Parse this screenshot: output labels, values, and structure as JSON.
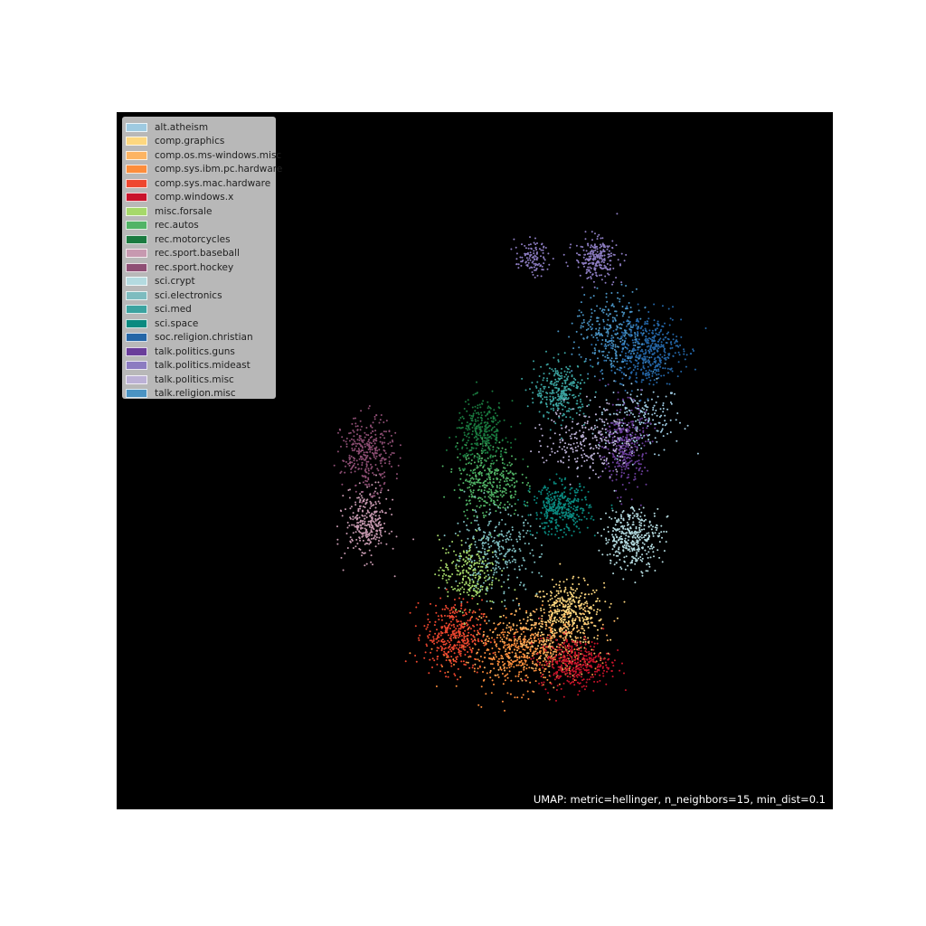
{
  "chart_data": {
    "type": "scatter",
    "title": "",
    "annotation": "UMAP: metric=hellinger, n_neighbors=15, min_dist=0.1",
    "background": "#000000",
    "grid": false,
    "legend_position": "top-left",
    "axes_ticks_visible": false,
    "xlim": [
      0,
      100
    ],
    "ylim": [
      0,
      100
    ],
    "series": [
      {
        "name": "alt.atheism",
        "color": "#9ecae1",
        "clusters": [
          {
            "x": 73,
            "y": 56,
            "sx": 3,
            "sy": 2.5,
            "n": 200
          }
        ]
      },
      {
        "name": "comp.graphics",
        "color": "#fdd77f",
        "clusters": [
          {
            "x": 63,
            "y": 28,
            "sx": 2.5,
            "sy": 2.2,
            "n": 420
          }
        ]
      },
      {
        "name": "comp.os.ms-windows.misc",
        "color": "#fdb462",
        "clusters": [
          {
            "x": 59,
            "y": 24,
            "sx": 4,
            "sy": 2.5,
            "n": 360
          }
        ]
      },
      {
        "name": "comp.sys.ibm.pc.hardware",
        "color": "#fd8d3c",
        "clusters": [
          {
            "x": 56,
            "y": 22,
            "sx": 4,
            "sy": 2.5,
            "n": 400
          }
        ]
      },
      {
        "name": "comp.sys.mac.hardware",
        "color": "#ef472f",
        "clusters": [
          {
            "x": 47,
            "y": 25,
            "sx": 2,
            "sy": 2.5,
            "n": 380
          }
        ]
      },
      {
        "name": "comp.windows.x",
        "color": "#c9132b",
        "clusters": [
          {
            "x": 64,
            "y": 21,
            "sx": 2.5,
            "sy": 1.8,
            "n": 380
          }
        ]
      },
      {
        "name": "misc.forsale",
        "color": "#a6d96a",
        "clusters": [
          {
            "x": 49,
            "y": 34,
            "sx": 2,
            "sy": 2.5,
            "n": 250
          }
        ]
      },
      {
        "name": "rec.autos",
        "color": "#51b466",
        "clusters": [
          {
            "x": 52,
            "y": 47,
            "sx": 2.2,
            "sy": 2.5,
            "n": 360
          }
        ]
      },
      {
        "name": "rec.motorcycles",
        "color": "#1a7a3f",
        "clusters": [
          {
            "x": 51,
            "y": 54,
            "sx": 1.8,
            "sy": 2.2,
            "n": 320
          }
        ]
      },
      {
        "name": "rec.sport.baseball",
        "color": "#c799b0",
        "clusters": [
          {
            "x": 35,
            "y": 41,
            "sx": 1.5,
            "sy": 2.5,
            "n": 300
          }
        ]
      },
      {
        "name": "rec.sport.hockey",
        "color": "#8e4e74",
        "clusters": [
          {
            "x": 35,
            "y": 51,
            "sx": 1.8,
            "sy": 2.5,
            "n": 320
          }
        ]
      },
      {
        "name": "sci.crypt",
        "color": "#b4dbe0",
        "clusters": [
          {
            "x": 72,
            "y": 39,
            "sx": 2,
            "sy": 2.2,
            "n": 380
          }
        ]
      },
      {
        "name": "sci.electronics",
        "color": "#7dbcbf",
        "clusters": [
          {
            "x": 53,
            "y": 37,
            "sx": 3,
            "sy": 3,
            "n": 300
          }
        ]
      },
      {
        "name": "sci.med",
        "color": "#3ba3a0",
        "clusters": [
          {
            "x": 62,
            "y": 60,
            "sx": 1.8,
            "sy": 2,
            "n": 300
          }
        ]
      },
      {
        "name": "sci.space",
        "color": "#0a8a80",
        "clusters": [
          {
            "x": 62,
            "y": 43,
            "sx": 2,
            "sy": 1.8,
            "n": 360
          }
        ]
      },
      {
        "name": "soc.religion.christian",
        "color": "#2466a7",
        "clusters": [
          {
            "x": 74,
            "y": 66,
            "sx": 2.5,
            "sy": 2.5,
            "n": 480
          }
        ]
      },
      {
        "name": "talk.politics.guns",
        "color": "#6a3d9a",
        "clusters": [
          {
            "x": 71,
            "y": 52,
            "sx": 1.5,
            "sy": 3,
            "n": 320
          }
        ]
      },
      {
        "name": "talk.politics.mideast",
        "color": "#8c7cc1",
        "clusters": [
          {
            "x": 67,
            "y": 79,
            "sx": 1.5,
            "sy": 1.5,
            "n": 240
          },
          {
            "x": 58,
            "y": 79,
            "sx": 1.2,
            "sy": 1.2,
            "n": 110
          }
        ]
      },
      {
        "name": "talk.politics.misc",
        "color": "#bcb1d6",
        "clusters": [
          {
            "x": 66,
            "y": 53,
            "sx": 3,
            "sy": 2.5,
            "n": 260
          }
        ]
      },
      {
        "name": "talk.religion.misc",
        "color": "#4a93c3",
        "clusters": [
          {
            "x": 69,
            "y": 68,
            "sx": 2.5,
            "sy": 3,
            "n": 280
          }
        ]
      }
    ]
  }
}
